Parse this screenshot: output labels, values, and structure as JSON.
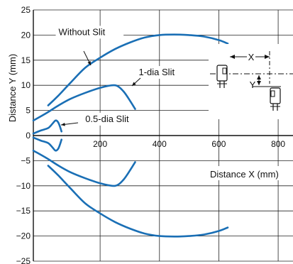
{
  "chart_data": {
    "type": "line",
    "xlabel": "Distance X (mm)",
    "ylabel": "Distance Y (mm)",
    "xlim": [
      -25,
      850
    ],
    "ylim": [
      -25,
      25
    ],
    "x_ticks": [
      200,
      400,
      600,
      800
    ],
    "y_ticks": [
      25,
      20,
      15,
      10,
      5,
      0,
      -5,
      -10,
      -15,
      -20,
      -25
    ],
    "grid": true,
    "series": [
      {
        "name": "Without Slit",
        "color": "#1a6fb5",
        "upper": [
          [
            25,
            6
          ],
          [
            60,
            8
          ],
          [
            100,
            10.5
          ],
          [
            150,
            13.5
          ],
          [
            200,
            15.5
          ],
          [
            250,
            17.2
          ],
          [
            300,
            18.5
          ],
          [
            350,
            19.5
          ],
          [
            400,
            20
          ],
          [
            450,
            20.1
          ],
          [
            500,
            20
          ],
          [
            550,
            19.7
          ],
          [
            600,
            19
          ],
          [
            630,
            18.3
          ]
        ],
        "lower": [
          [
            25,
            -6
          ],
          [
            60,
            -8
          ],
          [
            100,
            -10.5
          ],
          [
            150,
            -13.5
          ],
          [
            200,
            -15.5
          ],
          [
            250,
            -17.2
          ],
          [
            300,
            -18.5
          ],
          [
            350,
            -19.5
          ],
          [
            400,
            -20
          ],
          [
            450,
            -20.1
          ],
          [
            500,
            -20
          ],
          [
            550,
            -19.7
          ],
          [
            600,
            -19
          ],
          [
            630,
            -18.3
          ]
        ]
      },
      {
        "name": "1-dia Slit",
        "color": "#1a6fb5",
        "upper": [
          [
            -25,
            3
          ],
          [
            20,
            4.5
          ],
          [
            60,
            6
          ],
          [
            100,
            7.3
          ],
          [
            150,
            8.5
          ],
          [
            200,
            9.5
          ],
          [
            240,
            10
          ],
          [
            260,
            9.8
          ],
          [
            280,
            8.7
          ],
          [
            300,
            7
          ],
          [
            318,
            5.3
          ]
        ],
        "lower": [
          [
            -25,
            -3
          ],
          [
            20,
            -4.5
          ],
          [
            60,
            -6
          ],
          [
            100,
            -7.3
          ],
          [
            150,
            -8.5
          ],
          [
            200,
            -9.5
          ],
          [
            240,
            -10
          ],
          [
            260,
            -9.8
          ],
          [
            280,
            -8.7
          ],
          [
            300,
            -7
          ],
          [
            318,
            -5.3
          ]
        ]
      },
      {
        "name": "0.5-dia Slit",
        "color": "#1a6fb5",
        "upper": [
          [
            -25,
            0.4
          ],
          [
            0,
            1
          ],
          [
            25,
            1.5
          ],
          [
            40,
            2.4
          ],
          [
            50,
            3
          ],
          [
            58,
            2.7
          ],
          [
            64,
            1.9
          ],
          [
            70,
            0.8
          ]
        ],
        "lower": [
          [
            -25,
            -0.4
          ],
          [
            0,
            -1
          ],
          [
            25,
            -1.5
          ],
          [
            40,
            -2.4
          ],
          [
            50,
            -3
          ],
          [
            58,
            -2.7
          ],
          [
            64,
            -1.9
          ],
          [
            70,
            -0.8
          ]
        ]
      }
    ],
    "annotations": [
      {
        "text": "Without Slit",
        "x": 60,
        "y": 20
      },
      {
        "text": "1-dia Slit",
        "x": 330,
        "y": 12
      },
      {
        "text": "0.5-dia Slit",
        "x": 150,
        "y": 2.7
      }
    ],
    "inset": {
      "x_label": "X",
      "y_label": "Y"
    }
  }
}
